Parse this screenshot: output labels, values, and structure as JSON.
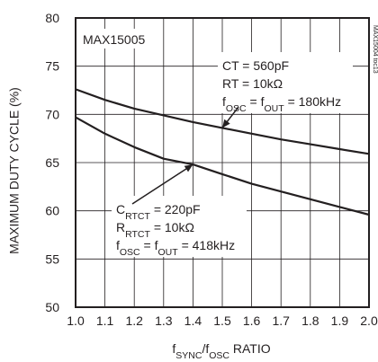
{
  "chart_data": {
    "type": "line",
    "title": "",
    "xlabel": "fSYNC/fOSC RATIO",
    "xlabel_parts": [
      {
        "t": "f",
        "sub": false
      },
      {
        "t": "SYNC",
        "sub": true
      },
      {
        "t": "/f",
        "sub": false
      },
      {
        "t": "OSC",
        "sub": true
      },
      {
        "t": " RATIO",
        "sub": false
      }
    ],
    "ylabel": "MAXIMUM DUTY CYCLE (%)",
    "xlim": [
      1.0,
      2.0
    ],
    "ylim": [
      50,
      80
    ],
    "x_ticks": [
      1.0,
      1.1,
      1.2,
      1.3,
      1.4,
      1.5,
      1.6,
      1.7,
      1.8,
      1.9,
      2.0
    ],
    "x_tick_labels": [
      "1.0",
      "1.1",
      "1.2",
      "1.3",
      "1.4",
      "1.5",
      "1.6",
      "1.7",
      "1.8",
      "1.9",
      "2.0"
    ],
    "y_ticks": [
      50,
      55,
      60,
      65,
      70,
      75,
      80
    ],
    "y_tick_labels": [
      "50",
      "55",
      "60",
      "65",
      "70",
      "75",
      "80"
    ],
    "grid": true,
    "legend": "none",
    "device_label": "MAX15005",
    "watermark": "MAX15004 toc13",
    "series": [
      {
        "x": [
          1.0,
          1.1,
          1.2,
          1.3,
          1.4,
          1.5,
          1.6,
          1.7,
          1.8,
          1.9,
          2.0
        ],
        "y": [
          72.6,
          71.5,
          70.6,
          69.9,
          69.2,
          68.6,
          68.0,
          67.4,
          66.9,
          66.4,
          65.9
        ],
        "color": "#231f20"
      },
      {
        "x": [
          1.0,
          1.1,
          1.2,
          1.3,
          1.4,
          1.5,
          1.6,
          1.7,
          1.8,
          1.9,
          2.0
        ],
        "y": [
          69.7,
          68.0,
          66.6,
          65.4,
          64.8,
          63.8,
          62.8,
          62.0,
          61.2,
          60.4,
          59.6
        ],
        "color": "#231f20"
      }
    ],
    "annotations": [
      {
        "lines": [
          [
            {
              "t": "CT = 560pF",
              "sub": false
            }
          ],
          [
            {
              "t": "RT = 10kΩ",
              "sub": false
            }
          ],
          [
            {
              "t": "f",
              "sub": false
            },
            {
              "t": "OSC",
              "sub": true
            },
            {
              "t": " = f",
              "sub": false
            },
            {
              "t": "OUT",
              "sub": true
            },
            {
              "t": " = 180kHz",
              "sub": false
            }
          ]
        ],
        "arrow_to": [
          1.5,
          68.6
        ]
      },
      {
        "lines": [
          [
            {
              "t": "C",
              "sub": false
            },
            {
              "t": "RTCT",
              "sub": true
            },
            {
              "t": " = 220pF",
              "sub": false
            }
          ],
          [
            {
              "t": "R",
              "sub": false
            },
            {
              "t": "RTCT",
              "sub": true
            },
            {
              "t": " = 10kΩ",
              "sub": false
            }
          ],
          [
            {
              "t": "f",
              "sub": false
            },
            {
              "t": "OSC",
              "sub": true
            },
            {
              "t": " = f",
              "sub": false
            },
            {
              "t": "OUT",
              "sub": true
            },
            {
              "t": " = 418kHz",
              "sub": false
            }
          ]
        ],
        "arrow_to": [
          1.4,
          64.8
        ]
      }
    ]
  }
}
